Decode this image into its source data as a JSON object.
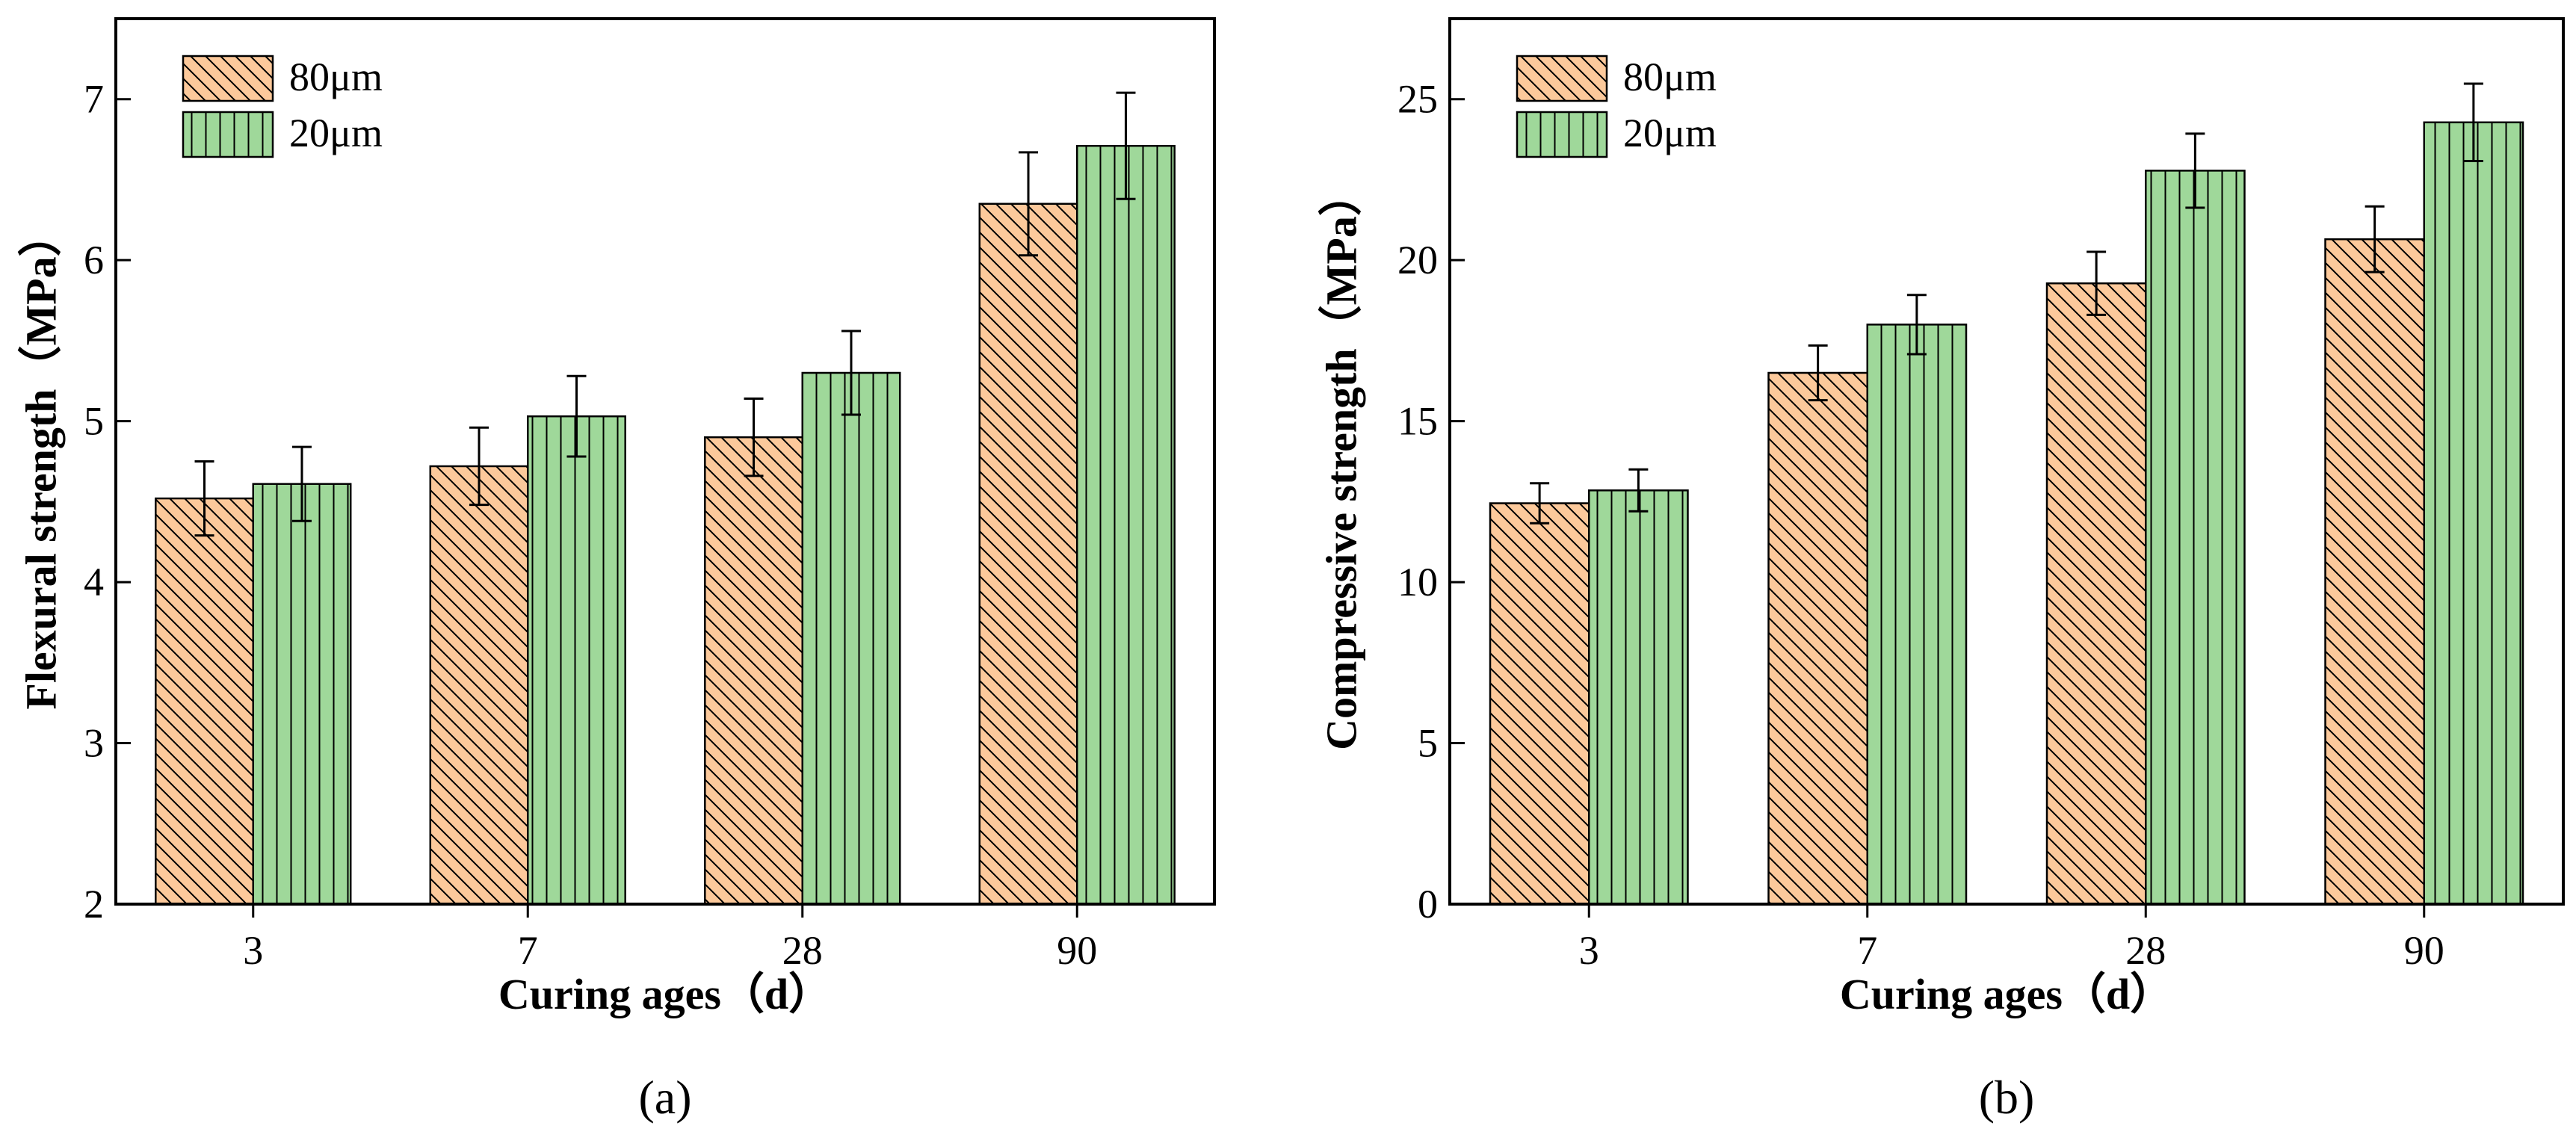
{
  "colors": {
    "series_80": "#fcc99b",
    "series_20": "#9fd89a",
    "hatch": "#000000"
  },
  "chart_data": [
    {
      "type": "bar",
      "panel_label": "(a)",
      "categories": [
        "3",
        "7",
        "28",
        "90"
      ],
      "series": [
        {
          "name": "80μm",
          "values": [
            4.52,
            4.72,
            4.9,
            6.35
          ],
          "errors": [
            0.23,
            0.24,
            0.24,
            0.32
          ],
          "hatch": "diagonal"
        },
        {
          "name": "20μm",
          "values": [
            4.61,
            5.03,
            5.3,
            6.71
          ],
          "errors": [
            0.23,
            0.25,
            0.26,
            0.33
          ],
          "hatch": "vertical"
        }
      ],
      "xlabel": "Curing ages（d）",
      "ylabel": "Flexural strength（MPa）",
      "ylim": [
        2,
        7.5
      ],
      "yticks": [
        2,
        3,
        4,
        5,
        6,
        7
      ],
      "legend": "top-left",
      "grid": false
    },
    {
      "type": "bar",
      "panel_label": "(b)",
      "categories": [
        "3",
        "7",
        "28",
        "90"
      ],
      "series": [
        {
          "name": "80μm",
          "values": [
            12.45,
            16.5,
            19.28,
            20.65
          ],
          "errors": [
            0.62,
            0.85,
            0.98,
            1.02
          ],
          "hatch": "diagonal"
        },
        {
          "name": "20μm",
          "values": [
            12.85,
            18.0,
            22.78,
            24.28
          ],
          "errors": [
            0.65,
            0.92,
            1.15,
            1.2
          ],
          "hatch": "vertical"
        }
      ],
      "xlabel": "Curing ages（d）",
      "ylabel": "Compressive strength（MPa）",
      "ylim": [
        0,
        27.5
      ],
      "yticks": [
        0,
        5,
        10,
        15,
        20,
        25
      ],
      "legend": "top-left",
      "grid": false
    }
  ]
}
